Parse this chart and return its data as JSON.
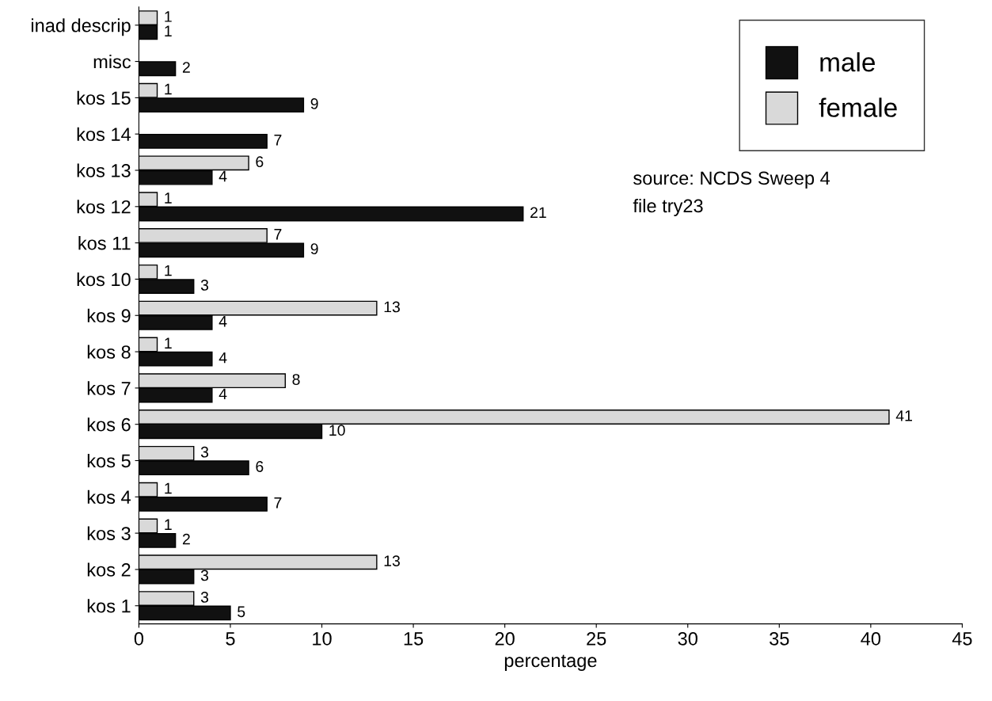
{
  "chart_data": {
    "type": "bar",
    "orientation": "horizontal",
    "categories": [
      "inad descrip",
      "misc",
      "kos 15",
      "kos 14",
      "kos 13",
      "kos 12",
      "kos 11",
      "kos 10",
      "kos 9",
      "kos 8",
      "kos 7",
      "kos 6",
      "kos 5",
      "kos 4",
      "kos 3",
      "kos 2",
      "kos 1"
    ],
    "series": [
      {
        "name": "male",
        "color": "#111111",
        "values": [
          1,
          2,
          9,
          7,
          4,
          21,
          9,
          3,
          4,
          4,
          4,
          10,
          6,
          7,
          2,
          3,
          5
        ]
      },
      {
        "name": "female",
        "color": "#d9d9d9",
        "values": [
          1,
          null,
          1,
          null,
          6,
          1,
          7,
          1,
          13,
          1,
          8,
          41,
          3,
          1,
          1,
          13,
          3
        ]
      }
    ],
    "xlabel": "percentage",
    "xlim": [
      0,
      45
    ],
    "xticks": [
      0,
      5,
      10,
      15,
      20,
      25,
      30,
      35,
      40,
      45
    ],
    "data_labels": true,
    "legend": "top right",
    "grid": false,
    "annotations": [
      "source: NCDS Sweep 4",
      "file try23"
    ]
  }
}
